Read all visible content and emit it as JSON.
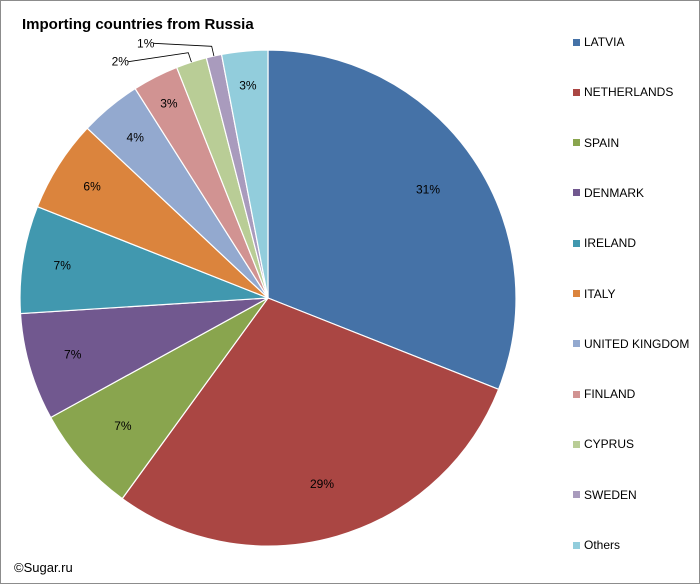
{
  "title": "Importing countries from Russia",
  "credit": "©Sugar.ru",
  "chart_data": {
    "type": "pie",
    "title": "Importing countries from Russia",
    "start_angle_deg": 0,
    "direction": "clockwise",
    "legend_position": "right",
    "slices": [
      {
        "name": "LATVIA",
        "value": 31,
        "label": "31%",
        "color": "#4572a7"
      },
      {
        "name": "NETHERLANDS",
        "value": 29,
        "label": "29%",
        "color": "#aa4643"
      },
      {
        "name": "SPAIN",
        "value": 7,
        "label": "7%",
        "color": "#89a54e"
      },
      {
        "name": "DENMARK",
        "value": 7,
        "label": "7%",
        "color": "#71588f"
      },
      {
        "name": "IRELAND",
        "value": 7,
        "label": "7%",
        "color": "#4198af"
      },
      {
        "name": "ITALY",
        "value": 6,
        "label": "6%",
        "color": "#db843d"
      },
      {
        "name": "UNITED KINGDOM",
        "value": 4,
        "label": "4%",
        "color": "#93a9cf"
      },
      {
        "name": "FINLAND",
        "value": 3,
        "label": "3%",
        "color": "#d19392"
      },
      {
        "name": "CYPRUS",
        "value": 2,
        "label": "2%",
        "color": "#b9cd96"
      },
      {
        "name": "SWEDEN",
        "value": 1,
        "label": "1%",
        "color": "#a99bbd"
      },
      {
        "name": "Others",
        "value": 3,
        "label": "3%",
        "color": "#92cddc"
      }
    ]
  }
}
